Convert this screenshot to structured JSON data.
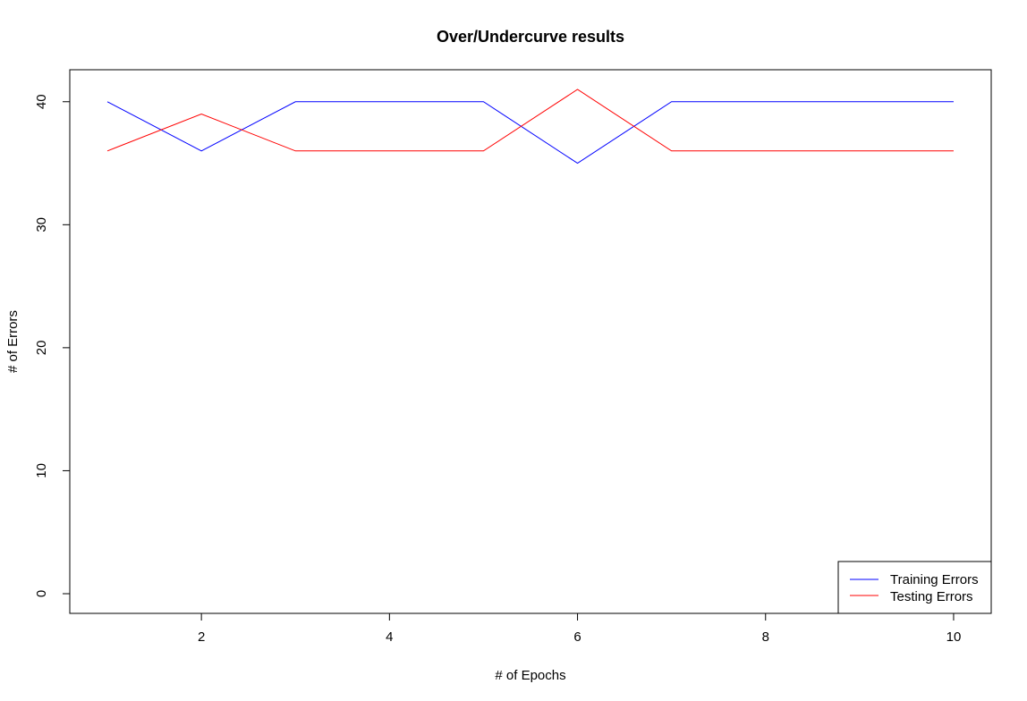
{
  "chart_data": {
    "type": "line",
    "title": "Over/Undercurve results",
    "xlabel": "# of Epochs",
    "ylabel": "# of Errors",
    "x": [
      1,
      2,
      3,
      4,
      5,
      6,
      7,
      8,
      9,
      10
    ],
    "xlim": [
      0.6,
      10.4
    ],
    "ylim": [
      -1.6,
      42.6
    ],
    "xticks": [
      2,
      4,
      6,
      8,
      10
    ],
    "yticks": [
      0,
      10,
      20,
      30,
      40
    ],
    "grid": false,
    "legend_position": "bottom-right",
    "series": [
      {
        "name": "Training Errors",
        "color": "#0000ff",
        "values": [
          40,
          36,
          40,
          40,
          40,
          35,
          40,
          40,
          40,
          40
        ]
      },
      {
        "name": "Testing Errors",
        "color": "#ff0000",
        "values": [
          36,
          39,
          36,
          36,
          36,
          41,
          36,
          36,
          36,
          36
        ]
      }
    ]
  }
}
